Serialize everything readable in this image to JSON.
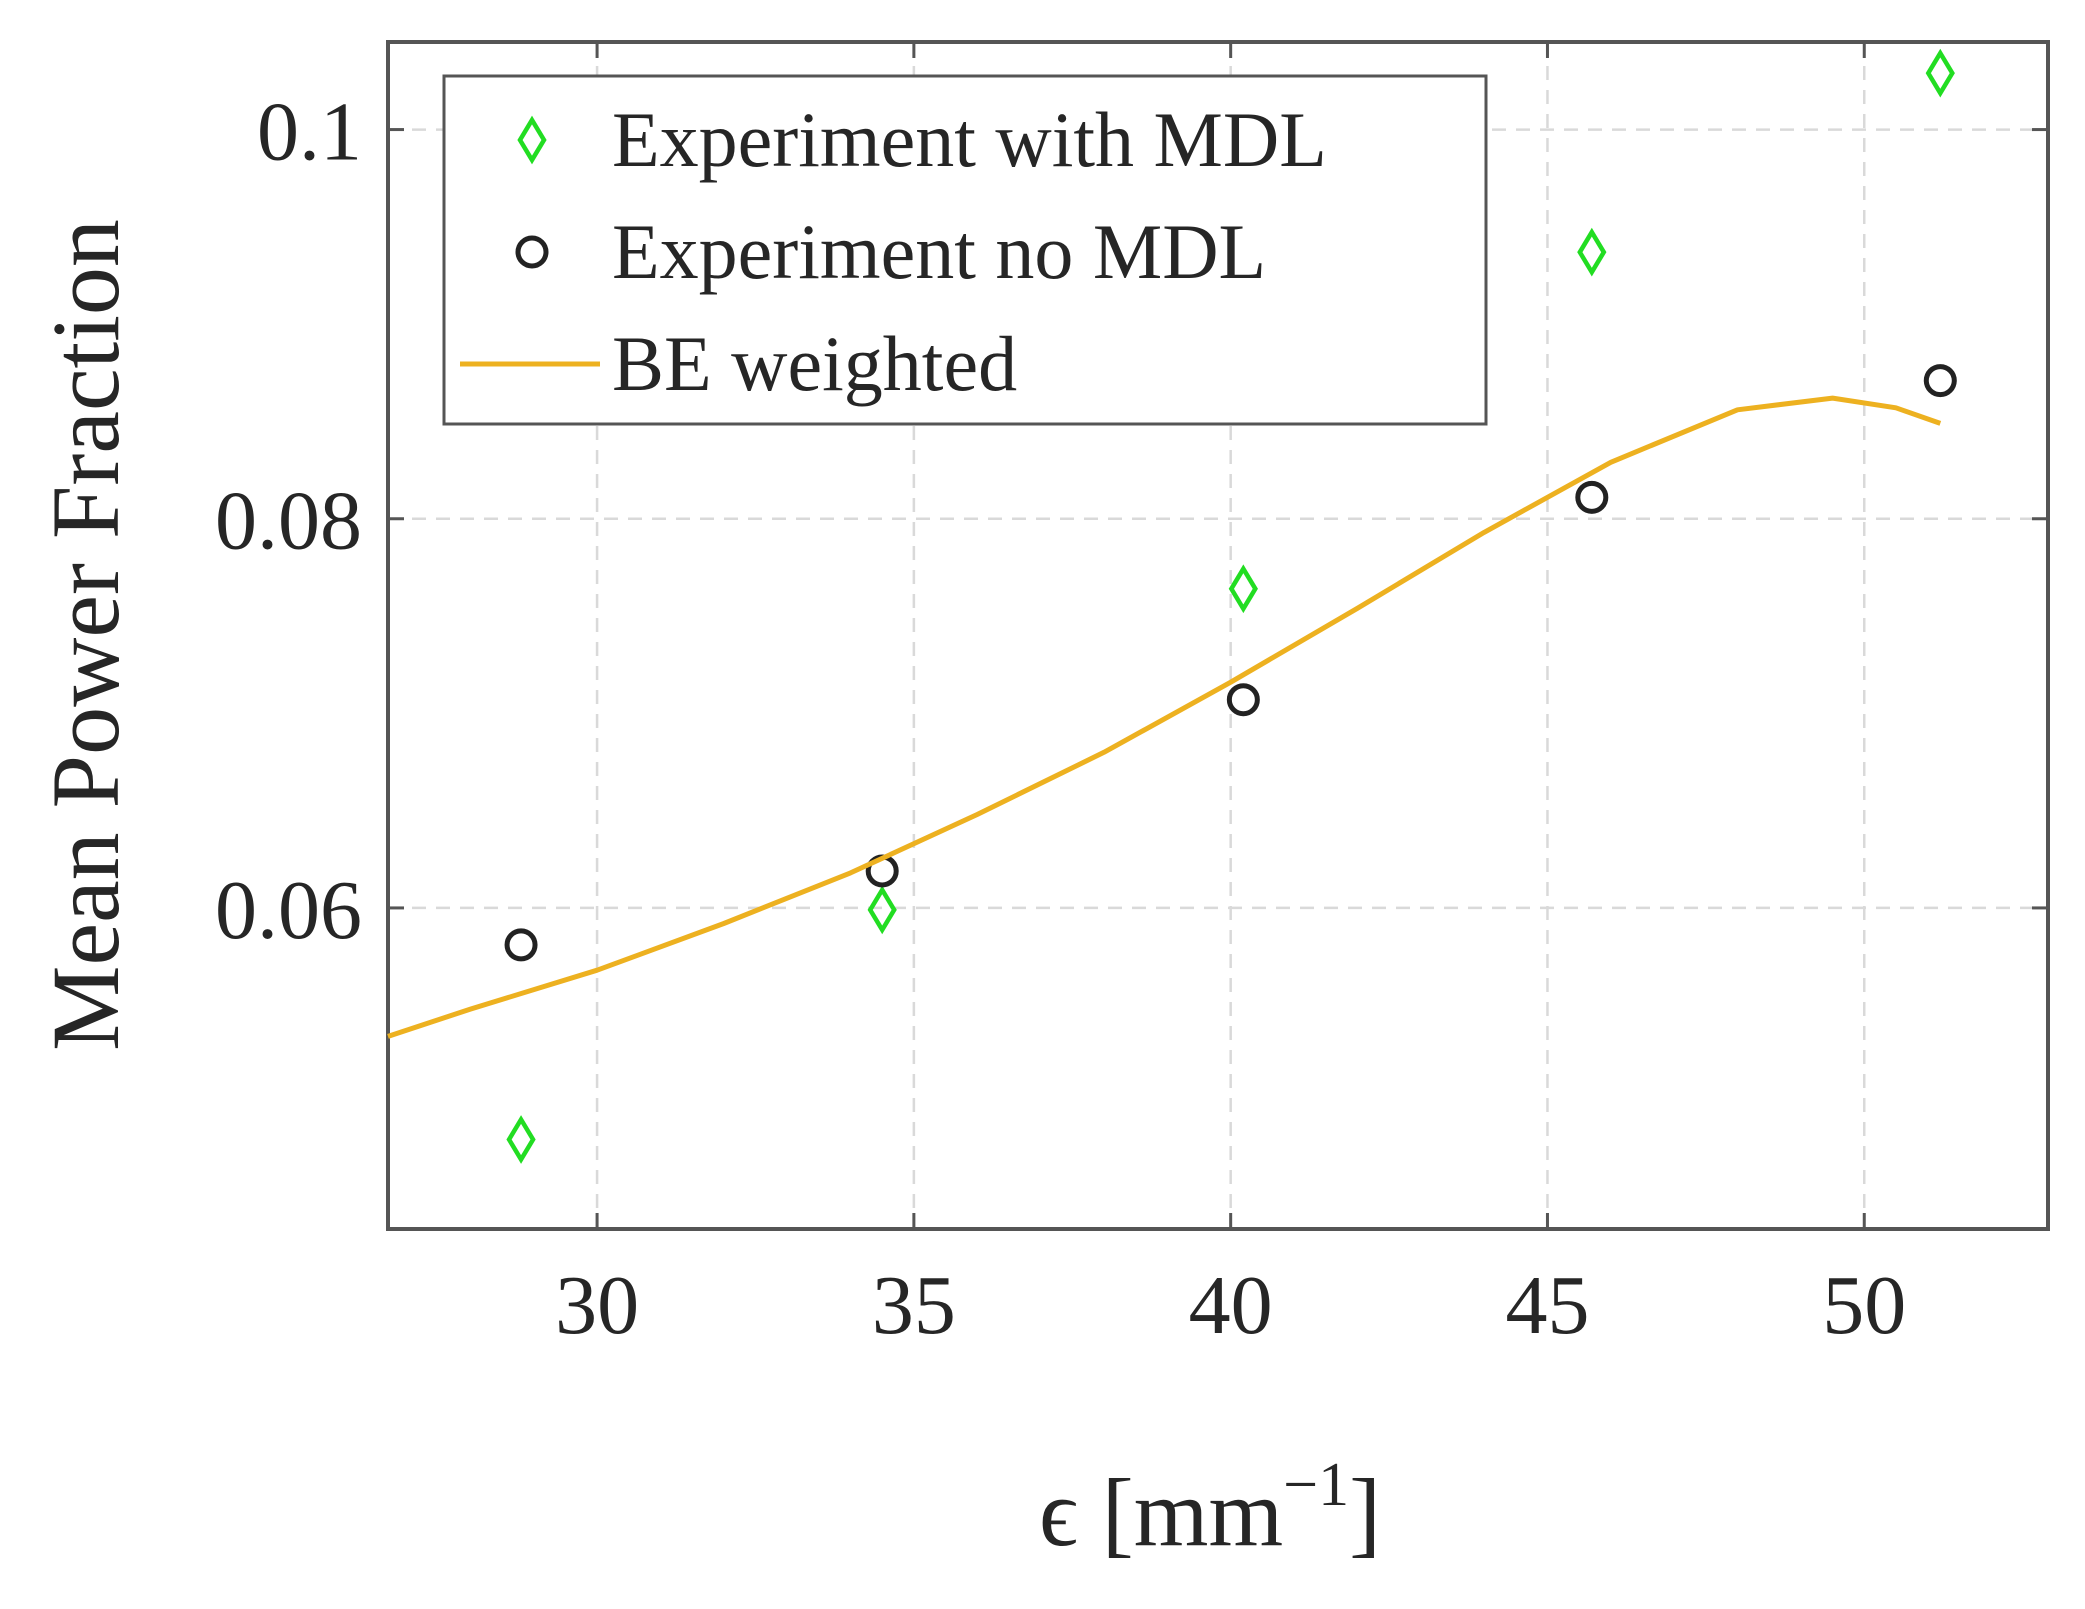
{
  "chart_data": {
    "type": "scatter",
    "title": "",
    "xlabel": "ϵ [mm",
    "xlabel_superscript": "−1",
    "xlabel_suffix": "]",
    "ylabel": "Mean Power Fraction",
    "xlim": [
      26.7,
      52.9
    ],
    "ylim": [
      0.0435,
      0.1045
    ],
    "x_ticks": [
      30,
      35,
      40,
      45,
      50
    ],
    "x_tick_labels": [
      "30",
      "35",
      "40",
      "45",
      "50"
    ],
    "y_ticks": [
      0.06,
      0.08,
      0.1
    ],
    "y_tick_labels": [
      "0.06",
      "0.08",
      "0.1"
    ],
    "grid": true,
    "legend_position": "top-left",
    "series": [
      {
        "name": "Experiment with MDL",
        "marker": "diamond",
        "color": "#22dd22",
        "x": [
          28.8,
          34.5,
          40.2,
          45.7,
          51.2
        ],
        "y": [
          0.0481,
          0.0599,
          0.0764,
          0.0937,
          0.1029
        ]
      },
      {
        "name": "Experiment no MDL",
        "marker": "circle",
        "color": "#222222",
        "x": [
          28.8,
          34.5,
          40.2,
          45.7,
          51.2
        ],
        "y": [
          0.0581,
          0.0619,
          0.0707,
          0.0811,
          0.0871
        ]
      },
      {
        "name": "BE weighted",
        "marker": "line",
        "color": "#edb120",
        "x": [
          26.7,
          28,
          30,
          32,
          34,
          36,
          38,
          40,
          42,
          44,
          46,
          48,
          49.5,
          50.5,
          51.2
        ],
        "y": [
          0.0534,
          0.0548,
          0.0568,
          0.0592,
          0.0618,
          0.0648,
          0.068,
          0.0716,
          0.0754,
          0.0793,
          0.0829,
          0.0856,
          0.0862,
          0.0857,
          0.0849
        ]
      }
    ]
  }
}
